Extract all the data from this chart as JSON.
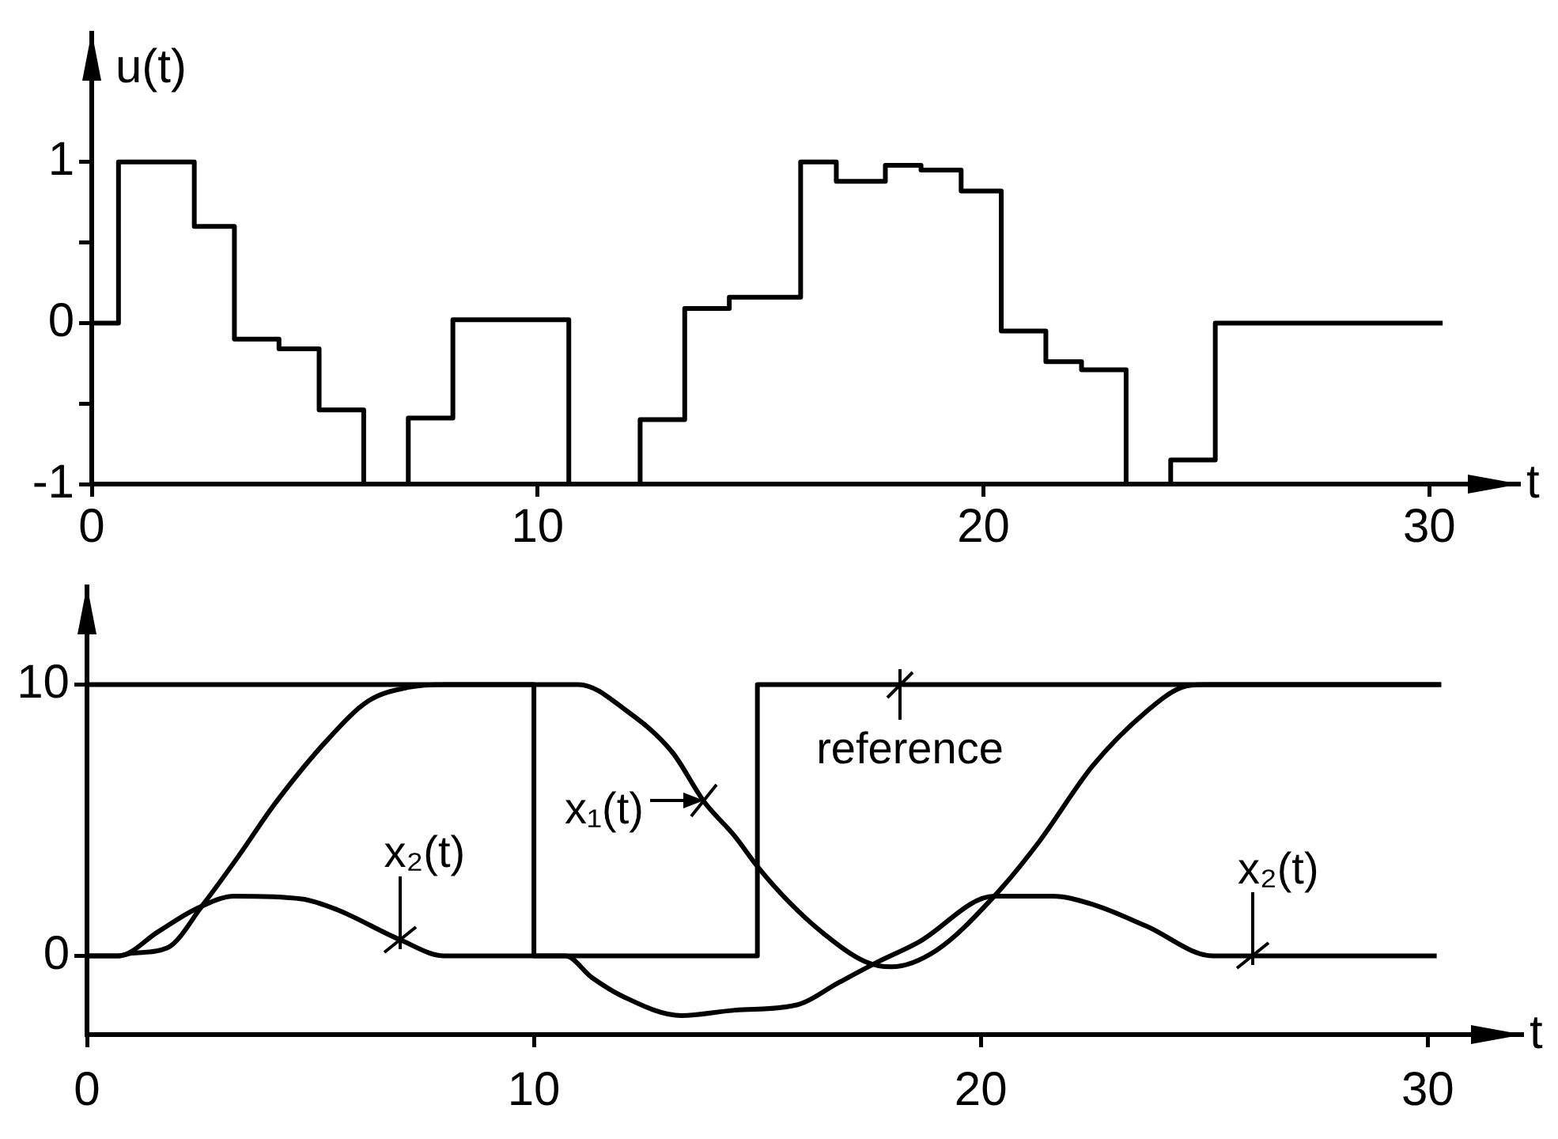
{
  "chart_data": [
    {
      "type": "step",
      "ylabel": "u(t)",
      "xlabel": "t",
      "x": [
        0,
        0.6,
        2.3,
        3.2,
        4.2,
        5.1,
        6.1,
        7.1,
        8.1,
        10.7,
        12.3,
        13.3,
        14.3,
        15.9,
        16.7,
        17.8,
        18.6,
        19.5,
        20.4,
        21.4,
        22.2,
        23.2,
        24.2,
        25.2,
        30.3
      ],
      "values": [
        0,
        1,
        0.6,
        -0.1,
        -0.16,
        -0.54,
        -1,
        -0.59,
        0.02,
        -1,
        -0.6,
        0.09,
        0.16,
        1,
        0.88,
        0.98,
        0.95,
        0.82,
        -0.05,
        -0.24,
        -0.29,
        -1,
        -0.85,
        0,
        0
      ],
      "color": "#000000",
      "xlim": [
        0,
        32
      ],
      "ylim": [
        -1,
        1.8
      ],
      "xticks": [
        0,
        10,
        20,
        30
      ],
      "yticks": [
        -1,
        {
          "value": -0.5,
          "label": null
        },
        0,
        {
          "value": 0.5,
          "label": null
        },
        1
      ]
    },
    {
      "type": "line",
      "xlabel": "t",
      "series": [
        {
          "type": "step",
          "color": "#000000",
          "x": [
            0,
            10,
            15,
            30.3
          ],
          "values": [
            10,
            0,
            10,
            10
          ]
        },
        {
          "color": "#000000",
          "x": [
            0,
            0.7,
            1,
            1.8,
            2.6,
            3.4,
            4.2,
            5.4,
            6.3,
            7.2,
            8,
            11,
            12.1,
            13.1,
            13.8,
            14.5,
            15,
            15.7,
            16.5,
            17.4,
            18,
            19,
            20.3,
            21.3,
            22.5,
            23.7,
            24.5,
            25,
            30.3
          ],
          "values": [
            0,
            0,
            0.1,
            0.3,
            1.9,
            3.7,
            5.6,
            8,
            9.4,
            9.9,
            10,
            10,
            9,
            7.5,
            5.7,
            4.4,
            3.3,
            2,
            0.8,
            -0.2,
            -0.4,
            0.2,
            2.2,
            4.2,
            7,
            9,
            9.9,
            10,
            10
          ]
        },
        {
          "color": "#000000",
          "x": [
            0,
            0.7,
            1.6,
            2.4,
            3.3,
            4.8,
            5.6,
            7,
            8,
            10.7,
            11.3,
            12,
            13.3,
            14.5,
            15.9,
            16.8,
            17.6,
            18.6,
            20.3,
            21.6,
            22.5,
            23.7,
            25.2,
            30.2
          ],
          "values": [
            0,
            0,
            0.9,
            1.7,
            2.2,
            2.1,
            1.7,
            0.6,
            0,
            0,
            -0.8,
            -1.5,
            -2.2,
            -2,
            -1.8,
            -1,
            -0.3,
            0.5,
            2.2,
            2.2,
            1.9,
            1.1,
            0,
            0
          ]
        }
      ],
      "xlim": [
        0,
        32.1
      ],
      "ylim": [
        -2.9,
        13.6
      ],
      "xticks": [
        0,
        10,
        20,
        30
      ],
      "yticks": [
        0,
        10
      ],
      "annotations": [
        {
          "text": "reference",
          "x": 18.2,
          "y": 10
        },
        {
          "text": "x₁(t)",
          "x": 13.8,
          "y": 5.7
        },
        {
          "text": "x₂(t)",
          "x": 7,
          "y": 0.6
        },
        {
          "text": "x₂(t)",
          "x": 26.1,
          "y": 0
        }
      ]
    }
  ]
}
